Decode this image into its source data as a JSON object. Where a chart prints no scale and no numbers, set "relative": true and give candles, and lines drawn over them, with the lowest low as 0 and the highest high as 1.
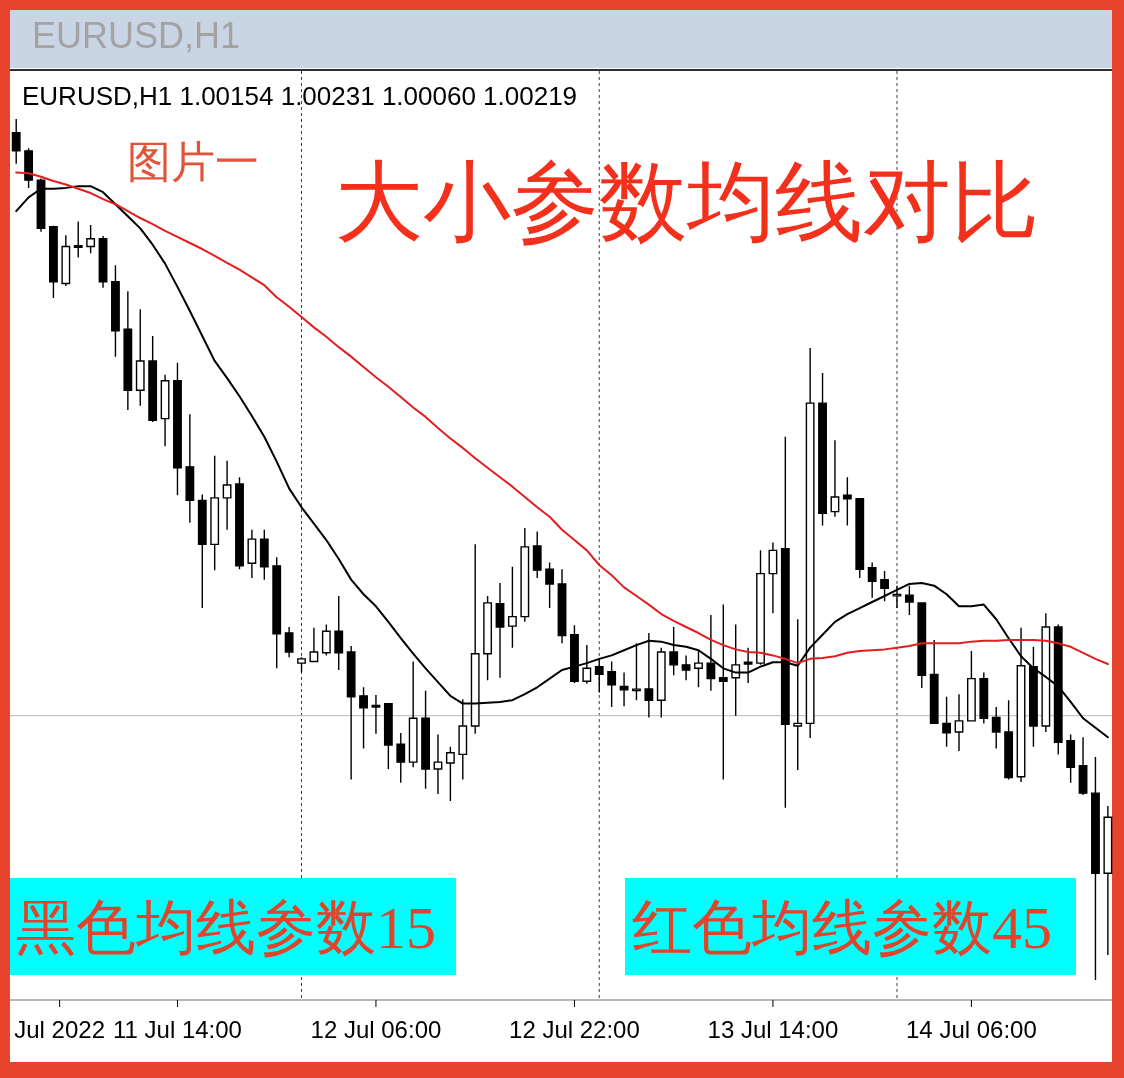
{
  "chart_data": {
    "type": "candlestick",
    "title": "大小参数均线对比",
    "subtitle": "图片一",
    "annotations": [
      "EURUSD,H1",
      "EURUSD,H1 1.00154 1.00231 1.00060 1.00219",
      "黑色均线参数15",
      "红色均线参数45"
    ],
    "relative": true,
    "x": [
      "2022-07-11T01:00",
      "2022-07-11T02:00",
      "2022-07-11T03:00",
      "2022-07-11T04:00",
      "2022-07-11T05:00",
      "2022-07-11T06:00",
      "2022-07-11T07:00",
      "2022-07-11T08:00",
      "2022-07-11T09:00",
      "2022-07-11T10:00",
      "2022-07-11T11:00",
      "2022-07-11T12:00",
      "2022-07-11T13:00",
      "2022-07-11T14:00",
      "2022-07-11T15:00",
      "2022-07-11T16:00",
      "2022-07-11T17:00",
      "2022-07-11T18:00",
      "2022-07-11T19:00",
      "2022-07-11T20:00",
      "2022-07-11T21:00",
      "2022-07-11T22:00",
      "2022-07-11T23:00",
      "2022-07-12T00:00",
      "2022-07-12T01:00",
      "2022-07-12T02:00",
      "2022-07-12T03:00",
      "2022-07-12T04:00",
      "2022-07-12T05:00",
      "2022-07-12T06:00",
      "2022-07-12T07:00",
      "2022-07-12T08:00",
      "2022-07-12T09:00",
      "2022-07-12T10:00",
      "2022-07-12T11:00",
      "2022-07-12T12:00",
      "2022-07-12T13:00",
      "2022-07-12T14:00",
      "2022-07-12T15:00",
      "2022-07-12T16:00",
      "2022-07-12T17:00",
      "2022-07-12T18:00",
      "2022-07-12T19:00",
      "2022-07-12T20:00",
      "2022-07-12T21:00",
      "2022-07-12T22:00",
      "2022-07-12T23:00",
      "2022-07-13T00:00",
      "2022-07-13T01:00",
      "2022-07-13T02:00",
      "2022-07-13T03:00",
      "2022-07-13T04:00",
      "2022-07-13T05:00",
      "2022-07-13T06:00",
      "2022-07-13T07:00",
      "2022-07-13T08:00",
      "2022-07-13T09:00",
      "2022-07-13T10:00",
      "2022-07-13T11:00",
      "2022-07-13T12:00",
      "2022-07-13T13:00",
      "2022-07-13T14:00",
      "2022-07-13T15:00",
      "2022-07-13T16:00",
      "2022-07-13T17:00",
      "2022-07-13T18:00",
      "2022-07-13T19:00",
      "2022-07-13T20:00",
      "2022-07-13T21:00",
      "2022-07-13T22:00",
      "2022-07-13T23:00",
      "2022-07-14T00:00",
      "2022-07-14T01:00",
      "2022-07-14T02:00",
      "2022-07-14T03:00",
      "2022-07-14T04:00",
      "2022-07-14T05:00",
      "2022-07-14T06:00",
      "2022-07-14T07:00",
      "2022-07-14T08:00",
      "2022-07-14T09:00",
      "2022-07-14T10:00",
      "2022-07-14T11:00",
      "2022-07-14T12:00",
      "2022-07-14T13:00",
      "2022-07-14T14:00",
      "2022-07-14T15:00",
      "2022-07-14T16:00",
      "2022-07-14T17:00"
    ],
    "series": [
      {
        "type": "line",
        "color": "#000000",
        "values": [
          0.893,
          0.909,
          0.919,
          0.919,
          0.92,
          0.922,
          0.922,
          0.915,
          0.901,
          0.887,
          0.873,
          0.854,
          0.832,
          0.805,
          0.777,
          0.748,
          0.719,
          0.699,
          0.678,
          0.655,
          0.631,
          0.602,
          0.571,
          0.549,
          0.53,
          0.511,
          0.489,
          0.465,
          0.448,
          0.434,
          0.416,
          0.397,
          0.379,
          0.362,
          0.346,
          0.33,
          0.321,
          0.321,
          0.322,
          0.323,
          0.325,
          0.332,
          0.34,
          0.35,
          0.36,
          0.364,
          0.368,
          0.373,
          0.377,
          0.383,
          0.389,
          0.394,
          0.393,
          0.389,
          0.387,
          0.383,
          0.373,
          0.362,
          0.357,
          0.357,
          0.364,
          0.369,
          0.369,
          0.365,
          0.386,
          0.401,
          0.416,
          0.425,
          0.432,
          0.439,
          0.446,
          0.453,
          0.46,
          0.461,
          0.458,
          0.448,
          0.434,
          0.434,
          0.436,
          0.419,
          0.397,
          0.376,
          0.362,
          0.352,
          0.341,
          0.323,
          0.304,
          0.293,
          0.282
        ]
      },
      {
        "type": "line",
        "color": "#e01e1e",
        "values": [
          0.938,
          0.937,
          0.933,
          0.928,
          0.924,
          0.919,
          0.914,
          0.907,
          0.901,
          0.893,
          0.885,
          0.878,
          0.87,
          0.863,
          0.856,
          0.849,
          0.841,
          0.833,
          0.825,
          0.816,
          0.807,
          0.793,
          0.782,
          0.77,
          0.758,
          0.747,
          0.735,
          0.724,
          0.712,
          0.7,
          0.689,
          0.677,
          0.665,
          0.654,
          0.641,
          0.629,
          0.618,
          0.606,
          0.595,
          0.584,
          0.573,
          0.561,
          0.549,
          0.538,
          0.523,
          0.511,
          0.499,
          0.482,
          0.47,
          0.456,
          0.446,
          0.436,
          0.425,
          0.417,
          0.41,
          0.403,
          0.395,
          0.389,
          0.384,
          0.381,
          0.38,
          0.377,
          0.373,
          0.368,
          0.373,
          0.374,
          0.376,
          0.38,
          0.382,
          0.383,
          0.384,
          0.386,
          0.388,
          0.391,
          0.391,
          0.391,
          0.391,
          0.393,
          0.394,
          0.394,
          0.395,
          0.395,
          0.395,
          0.394,
          0.391,
          0.387,
          0.38,
          0.373,
          0.367
        ]
      },
      {
        "type": "candlestick",
        "color": "#000000",
        "ohlc": [
          [
            0.984,
            1.0,
            0.948,
            0.963
          ],
          [
            0.963,
            0.966,
            0.92,
            0.929
          ],
          [
            0.929,
            0.931,
            0.869,
            0.873
          ],
          [
            0.875,
            0.876,
            0.792,
            0.811
          ],
          [
            0.809,
            0.865,
            0.806,
            0.852
          ],
          [
            0.852,
            0.881,
            0.839,
            0.852
          ],
          [
            0.852,
            0.877,
            0.844,
            0.861
          ],
          [
            0.861,
            0.864,
            0.804,
            0.811
          ],
          [
            0.811,
            0.83,
            0.724,
            0.754
          ],
          [
            0.756,
            0.8,
            0.662,
            0.685
          ],
          [
            0.685,
            0.779,
            0.667,
            0.719
          ],
          [
            0.719,
            0.748,
            0.648,
            0.65
          ],
          [
            0.652,
            0.703,
            0.62,
            0.696
          ],
          [
            0.696,
            0.717,
            0.563,
            0.595
          ],
          [
            0.596,
            0.657,
            0.531,
            0.557
          ],
          [
            0.557,
            0.564,
            0.432,
            0.506
          ],
          [
            0.506,
            0.609,
            0.476,
            0.56
          ],
          [
            0.56,
            0.603,
            0.523,
            0.575
          ],
          [
            0.576,
            0.584,
            0.477,
            0.481
          ],
          [
            0.484,
            0.523,
            0.467,
            0.512
          ],
          [
            0.512,
            0.523,
            0.465,
            0.48
          ],
          [
            0.481,
            0.491,
            0.362,
            0.402
          ],
          [
            0.403,
            0.41,
            0.375,
            0.381
          ],
          [
            0.368,
            0.375,
            0.358,
            0.373
          ],
          [
            0.37,
            0.409,
            0.369,
            0.381
          ],
          [
            0.38,
            0.413,
            0.377,
            0.405
          ],
          [
            0.405,
            0.446,
            0.36,
            0.38
          ],
          [
            0.381,
            0.388,
            0.233,
            0.329
          ],
          [
            0.33,
            0.34,
            0.269,
            0.316
          ],
          [
            0.318,
            0.331,
            0.286,
            0.318
          ],
          [
            0.321,
            0.321,
            0.245,
            0.273
          ],
          [
            0.274,
            0.287,
            0.229,
            0.253
          ],
          [
            0.253,
            0.37,
            0.247,
            0.304
          ],
          [
            0.304,
            0.336,
            0.222,
            0.245
          ],
          [
            0.245,
            0.285,
            0.216,
            0.253
          ],
          [
            0.252,
            0.271,
            0.208,
            0.264
          ],
          [
            0.262,
            0.326,
            0.233,
            0.295
          ],
          [
            0.295,
            0.506,
            0.286,
            0.379
          ],
          [
            0.379,
            0.446,
            0.348,
            0.438
          ],
          [
            0.437,
            0.461,
            0.351,
            0.41
          ],
          [
            0.411,
            0.48,
            0.386,
            0.422
          ],
          [
            0.422,
            0.525,
            0.416,
            0.503
          ],
          [
            0.504,
            0.521,
            0.467,
            0.476
          ],
          [
            0.477,
            0.485,
            0.432,
            0.46
          ],
          [
            0.46,
            0.477,
            0.391,
            0.4
          ],
          [
            0.401,
            0.412,
            0.345,
            0.347
          ],
          [
            0.347,
            0.389,
            0.344,
            0.362
          ],
          [
            0.364,
            0.374,
            0.334,
            0.355
          ],
          [
            0.358,
            0.37,
            0.317,
            0.343
          ],
          [
            0.341,
            0.357,
            0.318,
            0.337
          ],
          [
            0.337,
            0.391,
            0.325,
            0.337
          ],
          [
            0.338,
            0.403,
            0.305,
            0.325
          ],
          [
            0.325,
            0.386,
            0.305,
            0.381
          ],
          [
            0.381,
            0.41,
            0.354,
            0.366
          ],
          [
            0.366,
            0.377,
            0.348,
            0.36
          ],
          [
            0.362,
            0.384,
            0.34,
            0.368
          ],
          [
            0.368,
            0.424,
            0.336,
            0.35
          ],
          [
            0.351,
            0.436,
            0.233,
            0.347
          ],
          [
            0.351,
            0.413,
            0.307,
            0.366
          ],
          [
            0.369,
            0.386,
            0.345,
            0.367
          ],
          [
            0.368,
            0.499,
            0.366,
            0.472
          ],
          [
            0.472,
            0.508,
            0.426,
            0.499
          ],
          [
            0.501,
            0.631,
            0.2,
            0.297
          ],
          [
            0.295,
            0.419,
            0.244,
            0.298
          ],
          [
            0.298,
            0.734,
            0.281,
            0.67
          ],
          [
            0.67,
            0.705,
            0.528,
            0.542
          ],
          [
            0.544,
            0.627,
            0.538,
            0.561
          ],
          [
            0.563,
            0.584,
            0.528,
            0.559
          ],
          [
            0.559,
            0.559,
            0.467,
            0.477
          ],
          [
            0.479,
            0.485,
            0.444,
            0.463
          ],
          [
            0.465,
            0.475,
            0.44,
            0.455
          ],
          [
            0.447,
            0.458,
            0.432,
            0.447
          ],
          [
            0.447,
            0.458,
            0.424,
            0.439
          ],
          [
            0.438,
            0.438,
            0.339,
            0.354
          ],
          [
            0.355,
            0.395,
            0.298,
            0.298
          ],
          [
            0.298,
            0.329,
            0.271,
            0.287
          ],
          [
            0.288,
            0.332,
            0.266,
            0.301
          ],
          [
            0.301,
            0.382,
            0.301,
            0.35
          ],
          [
            0.35,
            0.357,
            0.298,
            0.304
          ],
          [
            0.305,
            0.317,
            0.269,
            0.288
          ],
          [
            0.288,
            0.325,
            0.233,
            0.235
          ],
          [
            0.236,
            0.409,
            0.23,
            0.365
          ],
          [
            0.364,
            0.387,
            0.271,
            0.295
          ],
          [
            0.295,
            0.426,
            0.288,
            0.41
          ],
          [
            0.41,
            0.413,
            0.262,
            0.276
          ],
          [
            0.278,
            0.285,
            0.229,
            0.247
          ],
          [
            0.249,
            0.282,
            0.215,
            0.217
          ],
          [
            0.217,
            0.259,
            0.0,
            0.124
          ],
          [
            0.124,
            0.202,
            0.029,
            0.189
          ]
        ]
      }
    ],
    "xlim": [
      "2022-07-11T00:30",
      "2022-07-14T17:20"
    ],
    "xticks": [
      {
        "value": "2022-07-11T04:30",
        "label": "Jul 2022"
      },
      {
        "value": "2022-07-11T14:00",
        "label": "11 Jul 14:00"
      },
      {
        "value": "2022-07-12T06:00",
        "label": "12 Jul 06:00"
      },
      {
        "value": "2022-07-12T22:00",
        "label": "12 Jul 22:00"
      },
      {
        "value": "2022-07-13T14:00",
        "label": "13 Jul 14:00"
      },
      {
        "value": "2022-07-14T06:00",
        "label": "14 Jul 06:00"
      }
    ],
    "ref_lines": [
      {
        "axis": "x",
        "value": "2022-07-12T00:00",
        "color": "#404040",
        "line_style": "dotted"
      },
      {
        "axis": "x",
        "value": "2022-07-13T00:00",
        "color": "#404040",
        "line_style": "dotted"
      },
      {
        "axis": "x",
        "value": "2022-07-14T00:00",
        "color": "#404040",
        "line_style": "dotted"
      },
      {
        "axis": "y",
        "value": 0.307,
        "color": "#b8b8b8"
      }
    ]
  }
}
